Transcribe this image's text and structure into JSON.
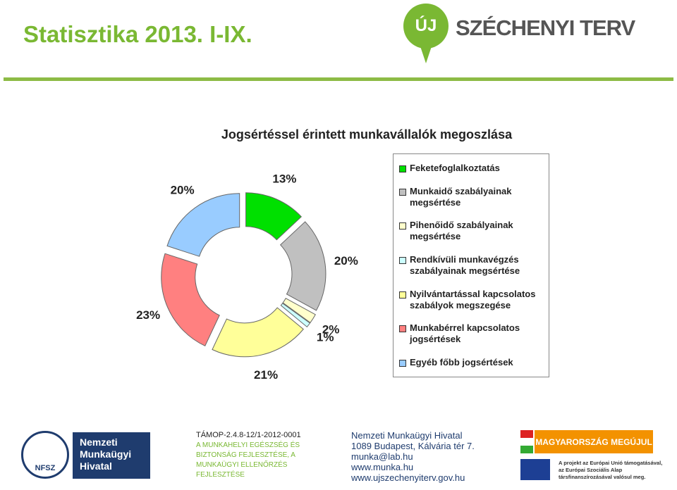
{
  "header": {
    "title": "Statisztika 2013. I-IX.",
    "logo_badge": "ÚJ",
    "logo_text": "SZÉCHENYI TERV"
  },
  "chart_data": {
    "type": "pie",
    "donut": true,
    "exploded": true,
    "legend": "right",
    "title": "Jogsértéssel érintett munkavállalók megoszlása",
    "categories": [
      "Feketefoglalkoztatás",
      "Munkaidő szabályainak megsértése",
      "Pihenőidő szabályainak megsértése",
      "Rendkívüli munkavégzés szabályainak megsértése",
      "Nyilvántartással kapcsolatos szabályok megszegése",
      "Munkabérrel kapcsolatos jogsértések",
      "Egyéb főbb jogsértések"
    ],
    "values": [
      13,
      20,
      2,
      1,
      21,
      23,
      20
    ],
    "value_labels": [
      "13%",
      "20%",
      "2%",
      "1%",
      "21%",
      "23%",
      "20%"
    ],
    "colors": [
      "#00e000",
      "#c0c0c0",
      "#ffffcc",
      "#ccffff",
      "#ffff99",
      "#ff8080",
      "#99ccff"
    ]
  },
  "footer": {
    "agency": "Nemzeti Munkaügyi Hivatal",
    "agency_abbr": "NFSZ",
    "project_code": "TÁMOP-2.4.8-12/1-2012-0001",
    "project_name": "A MUNKAHELYI EGÉSZSÉG ÉS BIZTONSÁG FEJLESZTÉSE, A MUNKAÜGYI ELLENŐRZÉS FEJLESZTÉSE",
    "contact": [
      "Nemzeti Munkaügyi Hivatal",
      "1089 Budapest, Kálvária tér 7.",
      "munka@lab.hu",
      "www.munka.hu",
      "www.ujszechenyiterv.gov.hu"
    ],
    "banner": "MAGYARORSZÁG MEGÚJUL",
    "eu_note": "A projekt az Európai Unió támogatásával, az Európai Szociális Alap társfinanszírozásával valósul meg."
  }
}
